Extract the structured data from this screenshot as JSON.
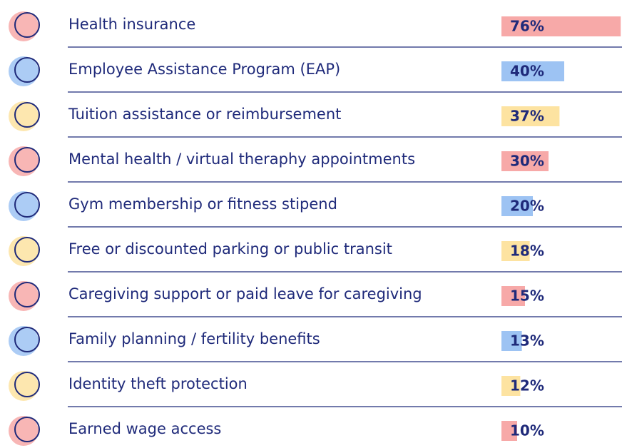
{
  "chart_data": {
    "type": "bar",
    "categories": [
      "Health insurance",
      "Employee Assistance Program (EAP)",
      "Tuition assistance or reimbursement",
      "Mental health / virtual theraphy appointments",
      "Gym membership or fitness stipend",
      "Free or discounted parking or public transit",
      "Caregiving support or paid leave for caregiving",
      "Family planning / fertility  benefits",
      "Identity theft protection",
      "Earned wage access"
    ],
    "values": [
      76,
      40,
      37,
      30,
      20,
      18,
      15,
      13,
      12,
      10
    ],
    "value_labels": [
      "76%",
      "40%",
      "37%",
      "30%",
      "20%",
      "18%",
      "15%",
      "13%",
      "12%",
      "10%"
    ],
    "colors": [
      "#f7a9a8",
      "#9dc3f3",
      "#fde3a1",
      "#f7a9a8",
      "#9dc3f3",
      "#fde3a1",
      "#f7a9a8",
      "#9dc3f3",
      "#fde3a1",
      "#f7a9a8"
    ]
  }
}
